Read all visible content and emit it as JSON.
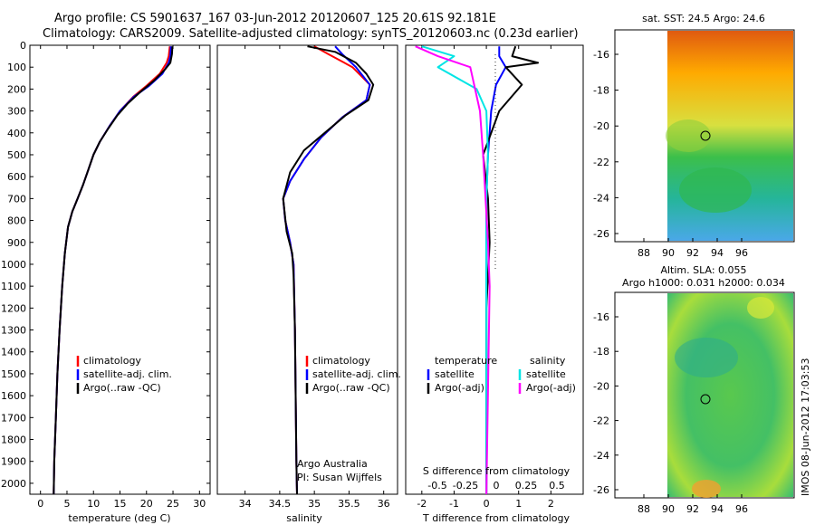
{
  "header": {
    "line1": "Argo profile: CS 5901637_167 03-Jun-2012 20120607_125 20.61S 92.181E",
    "line2": "Climatology: CARS2009. Satellite-adjusted climatology: synTS_20120603.nc (0.23d earlier)"
  },
  "depth_axis": {
    "ylim": [
      2050,
      0
    ],
    "ticks": [
      0,
      100,
      200,
      300,
      400,
      500,
      600,
      700,
      800,
      900,
      1000,
      1100,
      1200,
      1300,
      1400,
      1500,
      1600,
      1700,
      1800,
      1900,
      2000
    ]
  },
  "colors": {
    "climatology": "#ff0000",
    "satellite": "#0000ff",
    "argo": "#000000",
    "salinity_sat": "#00e5e5",
    "salinity_argo": "#ff00ff"
  },
  "chart_data": [
    {
      "id": "temperature",
      "type": "line",
      "xlabel": "temperature (deg C)",
      "xlim": [
        -2,
        32
      ],
      "xticks": [
        0,
        5,
        10,
        15,
        20,
        25,
        30
      ],
      "legend": {
        "climatology": "climatology",
        "satellite": "satellite-adj. clim.",
        "argo": "Argo(..raw -QC)"
      },
      "series": [
        {
          "name": "climatology",
          "color": "#ff0000",
          "points": [
            [
              24.4,
              5
            ],
            [
              24.2,
              50
            ],
            [
              23.8,
              80
            ],
            [
              22.5,
              130
            ],
            [
              20,
              185
            ],
            [
              17.5,
              235
            ],
            [
              15,
              300
            ],
            [
              13,
              370
            ],
            [
              11.2,
              440
            ],
            [
              10,
              500
            ],
            [
              9,
              570
            ],
            [
              8,
              640
            ],
            [
              7,
              700
            ],
            [
              6,
              760
            ],
            [
              5.2,
              830
            ],
            [
              4.6,
              950
            ],
            [
              4.1,
              1100
            ],
            [
              3.6,
              1300
            ],
            [
              3.2,
              1500
            ],
            [
              2.9,
              1700
            ],
            [
              2.6,
              1900
            ],
            [
              2.5,
              2050
            ]
          ]
        },
        {
          "name": "satellite",
          "color": "#0000ff",
          "points": [
            [
              24.6,
              5
            ],
            [
              24.5,
              50
            ],
            [
              24.2,
              80
            ],
            [
              23,
              130
            ],
            [
              20.5,
              185
            ],
            [
              17.6,
              235
            ],
            [
              15,
              300
            ],
            [
              13,
              370
            ],
            [
              11.2,
              440
            ],
            [
              10,
              500
            ],
            [
              9,
              570
            ],
            [
              8,
              640
            ],
            [
              7,
              700
            ],
            [
              6,
              760
            ],
            [
              5.2,
              830
            ],
            [
              4.6,
              950
            ],
            [
              4.1,
              1100
            ],
            [
              3.6,
              1300
            ],
            [
              3.2,
              1500
            ],
            [
              2.9,
              1700
            ],
            [
              2.6,
              1900
            ],
            [
              2.5,
              2050
            ]
          ]
        },
        {
          "name": "argo",
          "color": "#000000",
          "points": [
            [
              24.9,
              5
            ],
            [
              24.8,
              40
            ],
            [
              24.5,
              80
            ],
            [
              23.5,
              110
            ],
            [
              21.5,
              160
            ],
            [
              19,
              210
            ],
            [
              16.5,
              265
            ],
            [
              14.5,
              320
            ],
            [
              12.8,
              380
            ],
            [
              11.2,
              440
            ],
            [
              10,
              500
            ],
            [
              9,
              570
            ],
            [
              8,
              640
            ],
            [
              7,
              700
            ],
            [
              6,
              760
            ],
            [
              5.2,
              830
            ],
            [
              4.6,
              950
            ],
            [
              4.1,
              1100
            ],
            [
              3.6,
              1300
            ],
            [
              3.2,
              1500
            ],
            [
              2.9,
              1700
            ],
            [
              2.6,
              1900
            ],
            [
              2.5,
              2050
            ]
          ]
        }
      ]
    },
    {
      "id": "salinity",
      "type": "line",
      "xlabel": "salinity",
      "xlim": [
        33.6,
        36.2
      ],
      "xticks": [
        34,
        34.5,
        35,
        35.5,
        36
      ],
      "legend": {
        "climatology": "climatology",
        "satellite": "satellite-adj. clim.",
        "argo": "Argo(..raw -QC)"
      },
      "footer": [
        "Argo Australia",
        "PI: Susan Wijffels"
      ],
      "series": [
        {
          "name": "climatology",
          "color": "#ff0000",
          "points": [
            [
              35.0,
              5
            ],
            [
              35.2,
              40
            ],
            [
              35.55,
              100
            ],
            [
              35.8,
              180
            ],
            [
              35.75,
              250
            ],
            [
              35.4,
              330
            ],
            [
              35.1,
              420
            ],
            [
              34.85,
              520
            ],
            [
              34.65,
              620
            ],
            [
              34.55,
              700
            ],
            [
              34.58,
              800
            ],
            [
              34.65,
              900
            ],
            [
              34.7,
              1000
            ],
            [
              34.72,
              1300
            ],
            [
              34.73,
              1600
            ],
            [
              34.74,
              1900
            ],
            [
              34.75,
              2050
            ]
          ]
        },
        {
          "name": "satellite",
          "color": "#0000ff",
          "points": [
            [
              35.3,
              5
            ],
            [
              35.4,
              40
            ],
            [
              35.6,
              100
            ],
            [
              35.8,
              180
            ],
            [
              35.75,
              250
            ],
            [
              35.4,
              330
            ],
            [
              35.1,
              420
            ],
            [
              34.85,
              520
            ],
            [
              34.65,
              620
            ],
            [
              34.55,
              700
            ],
            [
              34.58,
              800
            ],
            [
              34.65,
              900
            ],
            [
              34.7,
              1000
            ],
            [
              34.72,
              1300
            ],
            [
              34.73,
              1600
            ],
            [
              34.74,
              1900
            ],
            [
              34.75,
              2050
            ]
          ]
        },
        {
          "name": "argo",
          "color": "#000000",
          "points": [
            [
              34.9,
              5
            ],
            [
              35.3,
              30
            ],
            [
              35.6,
              80
            ],
            [
              35.75,
              130
            ],
            [
              35.85,
              180
            ],
            [
              35.78,
              250
            ],
            [
              35.45,
              320
            ],
            [
              35.15,
              400
            ],
            [
              34.85,
              480
            ],
            [
              34.65,
              580
            ],
            [
              34.55,
              700
            ],
            [
              34.6,
              850
            ],
            [
              34.68,
              950
            ],
            [
              34.7,
              1050
            ],
            [
              34.72,
              1300
            ],
            [
              34.73,
              1600
            ],
            [
              34.74,
              1900
            ],
            [
              34.75,
              2050
            ]
          ]
        }
      ]
    },
    {
      "id": "differences",
      "type": "line",
      "xlabel": "T difference from climatology",
      "xlabel_top": "S difference from climatology",
      "xlim": [
        -2.5,
        3
      ],
      "xticks": [
        -2,
        -1,
        0,
        1,
        2
      ],
      "top_ticks": [
        "-0.5",
        "-0.25",
        "0",
        "0.25",
        "0.5"
      ],
      "legend": {
        "temperature": "temperature",
        "salinity": "salinity",
        "satellite": "satellite",
        "argo_adj": "Argo(-adj)"
      },
      "series": [
        {
          "name": "T satellite",
          "color": "#0000ff",
          "points": [
            [
              0.4,
              5
            ],
            [
              0.4,
              50
            ],
            [
              0.6,
              100
            ],
            [
              0.3,
              180
            ],
            [
              0.15,
              300
            ],
            [
              0.05,
              500
            ],
            [
              0,
              700
            ],
            [
              0,
              1000
            ],
            [
              0,
              2050
            ]
          ]
        },
        {
          "name": "T argo",
          "color": "#000000",
          "points": [
            [
              0.9,
              5
            ],
            [
              0.8,
              50
            ],
            [
              1.6,
              80
            ],
            [
              0.6,
              100
            ],
            [
              1.1,
              180
            ],
            [
              0.4,
              300
            ],
            [
              -0.1,
              500
            ],
            [
              0.05,
              700
            ],
            [
              0.1,
              900
            ],
            [
              0,
              1200
            ],
            [
              0,
              2050
            ]
          ]
        },
        {
          "name": "S satellite",
          "color": "#00e5e5",
          "points": [
            [
              -2,
              5
            ],
            [
              -1,
              50
            ],
            [
              -1.5,
              100
            ],
            [
              -0.3,
              200
            ],
            [
              0,
              300
            ],
            [
              0.05,
              500
            ],
            [
              0,
              700
            ],
            [
              0,
              2050
            ]
          ]
        },
        {
          "name": "S argo",
          "color": "#ff00ff",
          "points": [
            [
              -2.2,
              5
            ],
            [
              -1.5,
              50
            ],
            [
              -0.5,
              100
            ],
            [
              -0.2,
              300
            ],
            [
              -0.1,
              500
            ],
            [
              0.05,
              900
            ],
            [
              0.1,
              1100
            ],
            [
              0,
              2050
            ]
          ]
        }
      ]
    }
  ],
  "maps": {
    "map1": {
      "title": "sat. SST: 24.5 Argo: 24.6",
      "lat_ticks": [
        "-16",
        "-18",
        "-20",
        "-22",
        "-24",
        "-26"
      ],
      "lon_ticks": [
        "88",
        "90",
        "92",
        "94",
        "96"
      ],
      "marker": {
        "lon": 92.181,
        "lat": -20.61
      }
    },
    "map2": {
      "title_line1": "Altim. SLA: 0.055",
      "title_line2": "Argo h1000: 0.031 h2000: 0.034",
      "lat_ticks": [
        "-16",
        "-18",
        "-20",
        "-22",
        "-24",
        "-26"
      ],
      "lon_ticks": [
        "88",
        "90",
        "92",
        "94",
        "96"
      ],
      "marker": {
        "lon": 92.181,
        "lat": -20.61
      }
    }
  },
  "stamp": "IMOS 08-Jun-2012 17:03:53"
}
